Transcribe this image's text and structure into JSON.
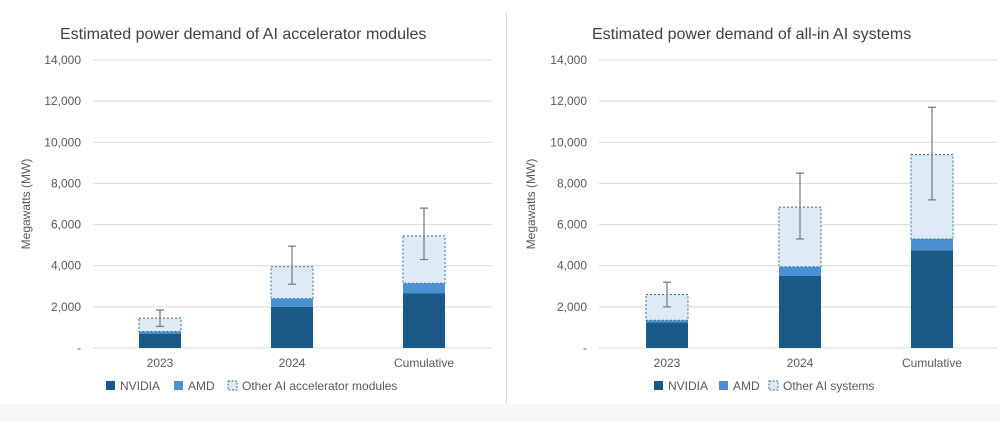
{
  "colors": {
    "nvidia": "#1b5a86",
    "amd": "#4a91d2",
    "other_fill": "#deebf6",
    "other_border": "#2e6f96",
    "grid": "#d9d9d9",
    "text": "#595959",
    "title": "#404040",
    "error_bar": "#7f7f7f"
  },
  "chart_data": [
    {
      "type": "bar",
      "stacked": true,
      "title": "Estimated power demand of AI accelerator modules",
      "ylabel": "Megawatts (MW)",
      "xlabel": "",
      "ylim": [
        0,
        14000
      ],
      "yticks": [
        0,
        2000,
        4000,
        6000,
        8000,
        10000,
        12000,
        14000
      ],
      "ytick_labels": [
        "-",
        "2,000",
        "4,000",
        "6,000",
        "8,000",
        "10,000",
        "12,000",
        "14,000"
      ],
      "grid": true,
      "legend_position": "bottom",
      "categories": [
        "2023",
        "2024",
        "Cumulative"
      ],
      "series": [
        {
          "name": "NVIDIA",
          "values": [
            700,
            2000,
            2650
          ]
        },
        {
          "name": "AMD",
          "values": [
            100,
            400,
            500
          ]
        },
        {
          "name": "Other AI accelerator modules",
          "values": [
            650,
            1550,
            2300
          ]
        }
      ],
      "error_bars": [
        [
          1050,
          1850
        ],
        [
          3100,
          4950
        ],
        [
          4300,
          6800
        ]
      ]
    },
    {
      "type": "bar",
      "stacked": true,
      "title": "Estimated power demand of all-in AI systems",
      "ylabel": "Megawatts (MW)",
      "xlabel": "",
      "ylim": [
        0,
        14000
      ],
      "yticks": [
        0,
        2000,
        4000,
        6000,
        8000,
        10000,
        12000,
        14000
      ],
      "ytick_labels": [
        "-",
        "2,000",
        "4,000",
        "6,000",
        "8,000",
        "10,000",
        "12,000",
        "14,000"
      ],
      "grid": true,
      "legend_position": "bottom",
      "categories": [
        "2023",
        "2024",
        "Cumulative"
      ],
      "series": [
        {
          "name": "NVIDIA",
          "values": [
            1250,
            3500,
            4750
          ]
        },
        {
          "name": "AMD",
          "values": [
            100,
            450,
            550
          ]
        },
        {
          "name": "Other AI systems",
          "values": [
            1250,
            2900,
            4100
          ]
        }
      ],
      "error_bars": [
        [
          2000,
          3200
        ],
        [
          5300,
          8500
        ],
        [
          7200,
          11700
        ]
      ]
    }
  ]
}
